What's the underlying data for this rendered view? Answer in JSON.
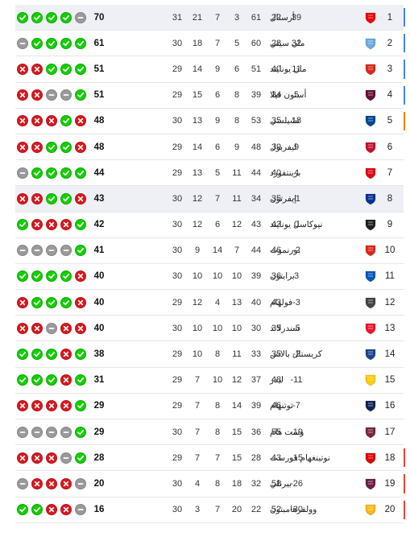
{
  "form_icons": {
    "W": "check-icon",
    "L": "cross-icon",
    "D": "dash-icon"
  },
  "colors": {
    "win": "#13cf00",
    "loss": "#d81920",
    "draw": "#9a9a9a",
    "ucl": "#4285f4",
    "uel": "#fa7b17",
    "relegation": "#ea4335"
  },
  "rows": [
    {
      "pos": "1",
      "name": "أرسنال",
      "c1": "31",
      "c2": "21",
      "c3": "7",
      "c4": "3",
      "c5": "61",
      "c6": "22",
      "c7": "39",
      "pts": "70",
      "form": [
        "W",
        "W",
        "W",
        "W",
        "D"
      ],
      "crest": "#ef0107",
      "bar": "#4285f4",
      "highlight": true
    },
    {
      "pos": "2",
      "name": "مان سيتي",
      "c1": "30",
      "c2": "18",
      "c3": "7",
      "c4": "5",
      "c5": "60",
      "c6": "28",
      "c7": "32",
      "pts": "61",
      "form": [
        "D",
        "W",
        "W",
        "W",
        "W"
      ],
      "crest": "#6cabdd",
      "bar": "#4285f4"
    },
    {
      "pos": "3",
      "name": "مان يونايتد",
      "c1": "29",
      "c2": "14",
      "c3": "9",
      "c4": "6",
      "c5": "51",
      "c6": "40",
      "c7": "11",
      "pts": "51",
      "form": [
        "L",
        "L",
        "W",
        "W",
        "W"
      ],
      "crest": "#da291c",
      "bar": "#4285f4"
    },
    {
      "pos": "4",
      "name": "أستون فيلا",
      "c1": "29",
      "c2": "15",
      "c3": "6",
      "c4": "8",
      "c5": "39",
      "c6": "34",
      "c7": "5",
      "pts": "51",
      "form": [
        "L",
        "L",
        "D",
        "D",
        "W"
      ],
      "crest": "#670e36",
      "bar": "#4285f4"
    },
    {
      "pos": "5",
      "name": "تشيلسي",
      "c1": "30",
      "c2": "13",
      "c3": "9",
      "c4": "8",
      "c5": "53",
      "c6": "35",
      "c7": "18",
      "pts": "48",
      "form": [
        "L",
        "L",
        "L",
        "W",
        "L"
      ],
      "crest": "#034694",
      "bar": "#fa7b17"
    },
    {
      "pos": "6",
      "name": "ليفربول",
      "c1": "29",
      "c2": "14",
      "c3": "6",
      "c4": "9",
      "c5": "48",
      "c6": "39",
      "c7": "9",
      "pts": "48",
      "form": [
        "L",
        "L",
        "W",
        "W",
        "L"
      ],
      "crest": "#c8102e",
      "bar": ""
    },
    {
      "pos": "7",
      "name": "برينتفورد",
      "c1": "29",
      "c2": "13",
      "c3": "5",
      "c4": "11",
      "c5": "44",
      "c6": "40",
      "c7": "4",
      "pts": "44",
      "form": [
        "D",
        "W",
        "W",
        "W",
        "W"
      ],
      "crest": "#e30613",
      "bar": ""
    },
    {
      "pos": "8",
      "name": "إيفرتون",
      "c1": "30",
      "c2": "12",
      "c3": "7",
      "c4": "11",
      "c5": "34",
      "c6": "35",
      "c7": "-1",
      "pts": "43",
      "form": [
        "L",
        "L",
        "W",
        "W",
        "L"
      ],
      "crest": "#003399",
      "bar": "",
      "highlight": true
    },
    {
      "pos": "9",
      "name": "نيوكاسل يونايتد",
      "c1": "30",
      "c2": "12",
      "c3": "6",
      "c4": "12",
      "c5": "43",
      "c6": "43",
      "c7": "0",
      "pts": "42",
      "form": [
        "W",
        "L",
        "L",
        "L",
        "W"
      ],
      "crest": "#241f20",
      "bar": ""
    },
    {
      "pos": "10",
      "name": "بورنموث",
      "c1": "30",
      "c2": "9",
      "c3": "14",
      "c4": "7",
      "c5": "44",
      "c6": "46",
      "c7": "-2",
      "pts": "41",
      "form": [
        "D",
        "D",
        "D",
        "D",
        "W"
      ],
      "crest": "#da291c",
      "bar": ""
    },
    {
      "pos": "11",
      "name": "برايتون",
      "c1": "30",
      "c2": "10",
      "c3": "10",
      "c4": "10",
      "c5": "39",
      "c6": "36",
      "c7": "3",
      "pts": "40",
      "form": [
        "W",
        "W",
        "W",
        "W",
        "L"
      ],
      "crest": "#0057b8",
      "bar": ""
    },
    {
      "pos": "12",
      "name": "فولهام",
      "c1": "29",
      "c2": "12",
      "c3": "4",
      "c4": "13",
      "c5": "40",
      "c6": "43",
      "c7": "-3",
      "pts": "40",
      "form": [
        "L",
        "W",
        "W",
        "W",
        "L"
      ],
      "crest": "#444444",
      "bar": ""
    },
    {
      "pos": "13",
      "name": "سندرلاند",
      "c1": "30",
      "c2": "10",
      "c3": "10",
      "c4": "10",
      "c5": "30",
      "c6": "35",
      "c7": "-5",
      "pts": "40",
      "form": [
        "L",
        "L",
        "D",
        "L",
        "L"
      ],
      "crest": "#eb172b",
      "bar": ""
    },
    {
      "pos": "14",
      "name": "كريستال بالاس",
      "c1": "29",
      "c2": "10",
      "c3": "8",
      "c4": "11",
      "c5": "33",
      "c6": "35",
      "c7": "-2",
      "pts": "38",
      "form": [
        "W",
        "W",
        "W",
        "L",
        "W"
      ],
      "crest": "#1b458f",
      "bar": ""
    },
    {
      "pos": "15",
      "name": "ليدز",
      "c1": "29",
      "c2": "7",
      "c3": "10",
      "c4": "12",
      "c5": "37",
      "c6": "48",
      "c7": "-11",
      "pts": "31",
      "form": [
        "W",
        "W",
        "W",
        "L",
        "W"
      ],
      "crest": "#ffcd00",
      "bar": ""
    },
    {
      "pos": "16",
      "name": "توتنهام",
      "c1": "29",
      "c2": "7",
      "c3": "8",
      "c4": "14",
      "c5": "39",
      "c6": "46",
      "c7": "-7",
      "pts": "29",
      "form": [
        "L",
        "L",
        "L",
        "L",
        "W"
      ],
      "crest": "#132257",
      "bar": ""
    },
    {
      "pos": "17",
      "name": "وست هام",
      "c1": "30",
      "c2": "7",
      "c3": "8",
      "c4": "15",
      "c5": "36",
      "c6": "55",
      "c7": "-19",
      "pts": "29",
      "form": [
        "D",
        "D",
        "D",
        "D",
        "W"
      ],
      "crest": "#7a263a",
      "bar": ""
    },
    {
      "pos": "18",
      "name": "نوتينغهام فورست",
      "c1": "29",
      "c2": "7",
      "c3": "7",
      "c4": "15",
      "c5": "28",
      "c6": "43",
      "c7": "-15",
      "pts": "28",
      "form": [
        "L",
        "L",
        "L",
        "D",
        "W"
      ],
      "crest": "#dd0000",
      "bar": "#ea4335"
    },
    {
      "pos": "19",
      "name": "بيرنلي",
      "c1": "30",
      "c2": "4",
      "c3": "8",
      "c4": "18",
      "c5": "32",
      "c6": "58",
      "c7": "-26",
      "pts": "20",
      "form": [
        "D",
        "L",
        "L",
        "L",
        "D"
      ],
      "crest": "#6c1d45",
      "bar": "#ea4335"
    },
    {
      "pos": "20",
      "name": "وولفرهامبتون",
      "c1": "30",
      "c2": "3",
      "c3": "7",
      "c4": "20",
      "c5": "22",
      "c6": "52",
      "c7": "-30",
      "pts": "16",
      "form": [
        "W",
        "W",
        "L",
        "L",
        "D"
      ],
      "crest": "#fdb913",
      "bar": "#ea4335"
    }
  ]
}
